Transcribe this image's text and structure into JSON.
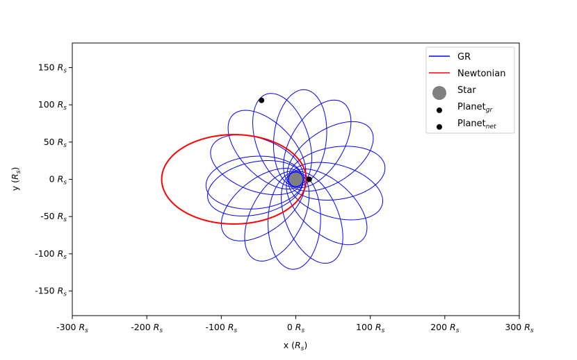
{
  "chart_data": {
    "type": "line",
    "xlabel_var": "x",
    "ylabel_var": "y",
    "unit_symbol": "R",
    "unit_sub": "s",
    "xlim": [
      -300,
      300
    ],
    "ylim": [
      -183,
      183
    ],
    "xticks": [
      -300,
      -200,
      -100,
      0,
      100,
      200,
      300
    ],
    "xtick_labels": [
      "-300",
      "-200",
      "-100",
      "0",
      "100",
      "200",
      "300"
    ],
    "yticks": [
      150,
      100,
      50,
      0,
      -50,
      -100,
      -150
    ],
    "ytick_labels": [
      "150",
      "100",
      "50",
      "0",
      "-50",
      "-100",
      "-150"
    ],
    "grid": false,
    "legend_position": "top-right",
    "legend": [
      {
        "label": "GR",
        "kind": "line",
        "color": "#0000ff"
      },
      {
        "label": "Newtonian",
        "kind": "line",
        "color": "#ff0000"
      },
      {
        "label": "Star",
        "kind": "big-dot",
        "color": "#808080"
      },
      {
        "label": "Planet",
        "sub": "gr",
        "kind": "dot",
        "color": "#000000"
      },
      {
        "label": "Planet",
        "sub": "net",
        "kind": "dot",
        "color": "#000000"
      }
    ],
    "series": [
      {
        "name": "GR",
        "color": "#0000ff",
        "semi_major": 65,
        "eccentricity": 0.86,
        "periapsis": 9,
        "precession_per_orbit_deg": 23.5,
        "orbits": 16
      },
      {
        "name": "Newtonian",
        "color": "#ff0000",
        "center": [
          -83,
          0
        ],
        "semi_axes": [
          97,
          60
        ]
      }
    ],
    "points": [
      {
        "name": "Star",
        "x": 0,
        "y": 0,
        "color": "#808080"
      },
      {
        "name": "Planet_gr",
        "x": -46,
        "y": 106,
        "color": "#000000"
      },
      {
        "name": "Planet_net",
        "x": 18,
        "y": 0,
        "color": "#000000"
      }
    ]
  }
}
